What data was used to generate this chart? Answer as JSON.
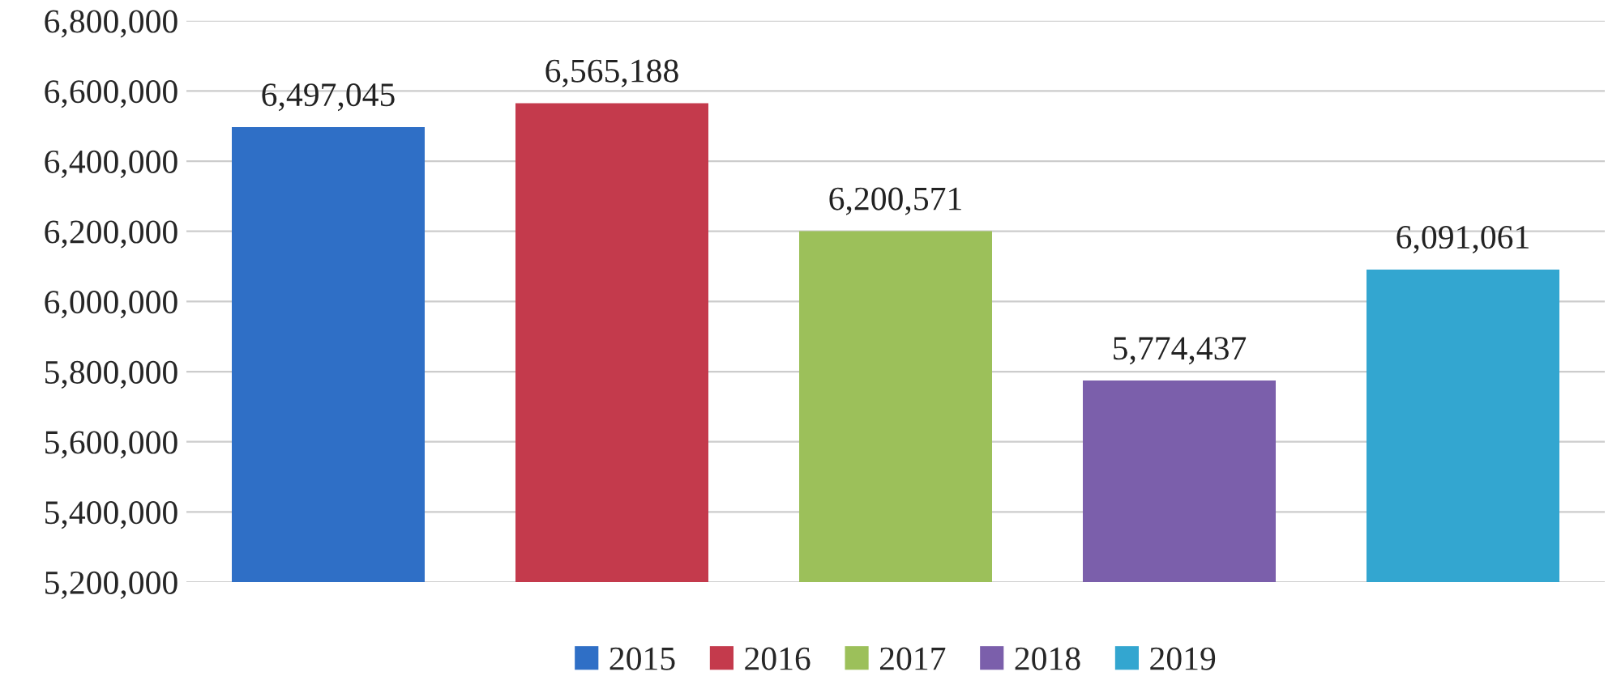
{
  "chart_data": {
    "type": "bar",
    "categories": [
      null,
      null,
      null,
      null,
      null
    ],
    "series": [
      {
        "name": "2015",
        "color": "#2f6fc6",
        "values": [
          6497045,
          null,
          null,
          null,
          null
        ],
        "value_labels": [
          "6,497,045",
          null,
          null,
          null,
          null
        ]
      },
      {
        "name": "2016",
        "color": "#c43a4c",
        "values": [
          null,
          6565188,
          null,
          null,
          null
        ],
        "value_labels": [
          null,
          "6,565,188",
          null,
          null,
          null
        ]
      },
      {
        "name": "2017",
        "color": "#9cc05a",
        "values": [
          null,
          null,
          6200571,
          null,
          null
        ],
        "value_labels": [
          null,
          null,
          "6,200,571",
          null,
          null
        ]
      },
      {
        "name": "2018",
        "color": "#7b5fab",
        "values": [
          null,
          null,
          null,
          5774437,
          null
        ],
        "value_labels": [
          null,
          null,
          null,
          "5,774,437",
          null
        ]
      },
      {
        "name": "2019",
        "color": "#33a6d0",
        "values": [
          null,
          null,
          null,
          null,
          6091061
        ],
        "value_labels": [
          null,
          null,
          null,
          null,
          "6,091,061"
        ]
      }
    ],
    "ylim": [
      5200000,
      6800000
    ],
    "yticks": [
      {
        "value": 5200000,
        "label": "5,200,000"
      },
      {
        "value": 5400000,
        "label": "5,400,000"
      },
      {
        "value": 5600000,
        "label": "5,600,000"
      },
      {
        "value": 5800000,
        "label": "5,800,000"
      },
      {
        "value": 6000000,
        "label": "6,000,000"
      },
      {
        "value": 6200000,
        "label": "6,200,000"
      },
      {
        "value": 6400000,
        "label": "6,400,000"
      },
      {
        "value": 6600000,
        "label": "6,600,000"
      },
      {
        "value": 6800000,
        "label": "6,800,000"
      }
    ],
    "grid": "y",
    "legend": "bottom"
  }
}
